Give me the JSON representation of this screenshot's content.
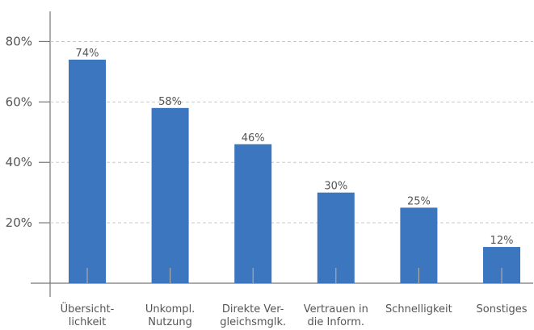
{
  "chart_data": {
    "type": "bar",
    "categories": [
      "Übersicht-\nlichkeit",
      "Unkompl.\nNutzung",
      "Direkte Ver-\ngleichsmglk.",
      "Vertrauen in\ndie Inform.",
      "Schnelligkeit",
      "Sonstiges"
    ],
    "values": [
      74,
      58,
      46,
      30,
      25,
      12
    ],
    "value_labels": [
      "74%",
      "58%",
      "46%",
      "30%",
      "25%",
      "12%"
    ],
    "color": "#3b76bf",
    "ylim": [
      0,
      90
    ],
    "yticks": [
      {
        "value": 20,
        "label": "20%"
      },
      {
        "value": 40,
        "label": "40%"
      },
      {
        "value": 60,
        "label": "60%"
      },
      {
        "value": 80,
        "label": "80%"
      }
    ],
    "grid": true
  }
}
